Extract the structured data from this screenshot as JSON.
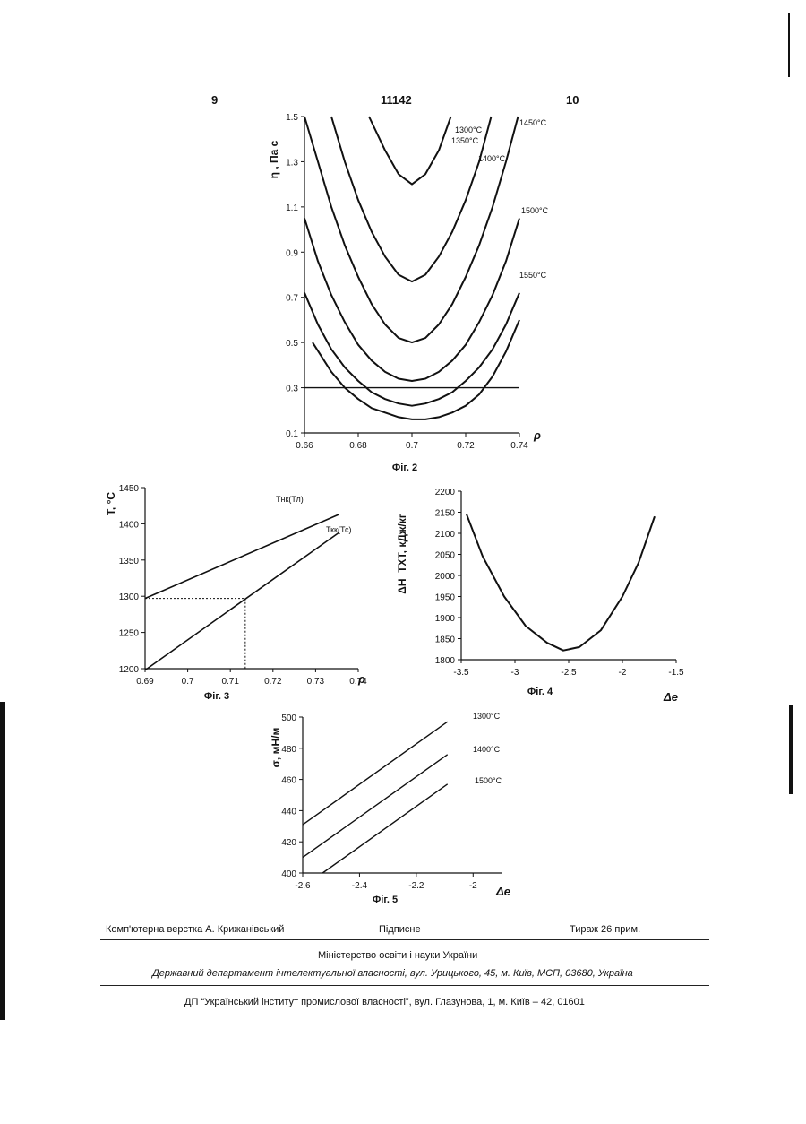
{
  "header": {
    "left_page": "9",
    "patent_number": "11142",
    "right_page": "10"
  },
  "figures": [
    {
      "caption": "Фіг. 2",
      "chart_data": {
        "type": "line",
        "ylabel": "η , Па с",
        "xlabel": "ρ",
        "xlim": [
          0.66,
          0.74
        ],
        "ylim": [
          0.1,
          1.5
        ],
        "x_ticks": [
          "0.66",
          "0.68",
          "0.7",
          "0.72",
          "0.74"
        ],
        "y_ticks": [
          "0.1",
          "0.3",
          "0.5",
          "0.7",
          "0.9",
          "1.1",
          "1.3",
          "1.5"
        ],
        "reference_line_y": 0.3,
        "series": [
          {
            "name": "1300°C",
            "x": [
              0.684,
              0.69,
              0.695,
              0.7,
              0.705,
              0.71,
              0.7145
            ],
            "y": [
              1.5,
              1.35,
              1.245,
              1.2,
              1.245,
              1.35,
              1.5
            ]
          },
          {
            "name": "1350°C",
            "x": [
              0.67,
              0.675,
              0.68,
              0.685,
              0.69,
              0.695,
              0.7,
              0.705,
              0.71,
              0.715,
              0.72,
              0.725,
              0.7295
            ],
            "y": [
              1.5,
              1.3,
              1.13,
              0.99,
              0.88,
              0.8,
              0.77,
              0.8,
              0.88,
              0.99,
              1.13,
              1.3,
              1.5
            ]
          },
          {
            "name": "1400°C",
            "x": [
              0.66,
              0.665,
              0.67,
              0.675,
              0.68,
              0.685,
              0.69,
              0.695,
              0.7,
              0.705,
              0.71,
              0.715,
              0.72,
              0.725,
              0.73,
              0.735,
              0.7395
            ],
            "y": [
              1.5,
              1.3,
              1.1,
              0.93,
              0.79,
              0.67,
              0.58,
              0.52,
              0.5,
              0.52,
              0.58,
              0.67,
              0.79,
              0.93,
              1.1,
              1.3,
              1.5
            ]
          },
          {
            "name": "1450°C",
            "x": [
              0.66,
              0.665,
              0.67,
              0.675,
              0.68,
              0.685,
              0.69,
              0.695,
              0.7,
              0.705,
              0.71,
              0.715,
              0.72,
              0.725,
              0.73,
              0.735,
              0.74
            ],
            "y": [
              1.05,
              0.86,
              0.71,
              0.59,
              0.49,
              0.42,
              0.37,
              0.34,
              0.33,
              0.34,
              0.37,
              0.42,
              0.49,
              0.59,
              0.71,
              0.86,
              1.05
            ]
          },
          {
            "name": "1500°C",
            "x": [
              0.66,
              0.665,
              0.67,
              0.675,
              0.68,
              0.685,
              0.69,
              0.695,
              0.7,
              0.705,
              0.71,
              0.715,
              0.72,
              0.725,
              0.73,
              0.735,
              0.74
            ],
            "y": [
              0.72,
              0.58,
              0.47,
              0.39,
              0.33,
              0.28,
              0.25,
              0.23,
              0.22,
              0.23,
              0.25,
              0.28,
              0.33,
              0.39,
              0.47,
              0.58,
              0.72
            ]
          },
          {
            "name": "1550°C",
            "x": [
              0.663,
              0.67,
              0.675,
              0.68,
              0.685,
              0.69,
              0.695,
              0.7,
              0.705,
              0.71,
              0.715,
              0.72,
              0.725,
              0.73,
              0.735,
              0.74
            ],
            "y": [
              0.5,
              0.37,
              0.3,
              0.25,
              0.21,
              0.19,
              0.17,
              0.16,
              0.16,
              0.17,
              0.19,
              0.22,
              0.27,
              0.35,
              0.46,
              0.6
            ]
          }
        ]
      }
    },
    {
      "caption": "Фіг. 3",
      "chart_data": {
        "type": "line",
        "ylabel": "T, °C",
        "xlabel": "ρ",
        "xlim": [
          0.69,
          0.74
        ],
        "ylim": [
          1200,
          1450
        ],
        "x_ticks": [
          "0.69",
          "0.7",
          "0.71",
          "0.72",
          "0.73",
          "0.74"
        ],
        "y_ticks": [
          "1200",
          "1250",
          "1300",
          "1350",
          "1400",
          "1450"
        ],
        "dashed_guide": {
          "x": 0.7135,
          "y": 1297
        },
        "series": [
          {
            "name": "Тнк(Тл)",
            "x": [
              0.69,
              0.7355
            ],
            "y": [
              1297,
              1413
            ]
          },
          {
            "name": "Ткк(Тс)",
            "x": [
              0.69,
              0.7355
            ],
            "y": [
              1198,
              1388
            ]
          }
        ]
      }
    },
    {
      "caption": "Фіг. 4",
      "chart_data": {
        "type": "line",
        "ylabel": "ΔH_ТХТ, кДж/кг",
        "xlabel": "Δe",
        "xlim": [
          -3.5,
          -1.5
        ],
        "ylim": [
          1800,
          2200
        ],
        "x_ticks": [
          "-3.5",
          "-3",
          "-2.5",
          "-2",
          "-1.5"
        ],
        "y_ticks": [
          "1800",
          "1850",
          "1900",
          "1950",
          "2000",
          "2050",
          "2100",
          "2150",
          "2200"
        ],
        "series": [
          {
            "name": "",
            "x": [
              -3.45,
              -3.3,
              -3.1,
              -2.9,
              -2.7,
              -2.55,
              -2.4,
              -2.2,
              -2.0,
              -1.85,
              -1.7
            ],
            "y": [
              2145,
              2045,
              1950,
              1880,
              1840,
              1822,
              1830,
              1870,
              1950,
              2030,
              2140
            ]
          }
        ]
      }
    },
    {
      "caption": "Фіг. 5",
      "chart_data": {
        "type": "line",
        "ylabel": "σ, мН/м",
        "xlabel": "Δe",
        "xlim": [
          -2.6,
          -1.9
        ],
        "ylim": [
          400,
          500
        ],
        "x_ticks": [
          "-2.6",
          "-2.4",
          "-2.2",
          "-2"
        ],
        "y_ticks": [
          "400",
          "420",
          "440",
          "460",
          "480",
          "500"
        ],
        "series": [
          {
            "name": "1300°C",
            "x": [
              -2.6,
              -2.09
            ],
            "y": [
              431,
              497
            ]
          },
          {
            "name": "1400°C",
            "x": [
              -2.6,
              -2.09
            ],
            "y": [
              410,
              476
            ]
          },
          {
            "name": "1500°C",
            "x": [
              -2.53,
              -2.09
            ],
            "y": [
              400,
              457
            ]
          }
        ]
      }
    }
  ],
  "footer": {
    "typesetting": "Комп'ютерна верстка А. Крижанівський",
    "signed": "Підписне",
    "circulation": "Тираж 26 прим.",
    "ministry": "Міністерство освіти і науки України",
    "department": "Державний департамент інтелектуальної власності, вул. Урицького, 45, м. Київ, МСП, 03680, Україна",
    "institute": "ДП “Український інститут промислової власності”, вул. Глазунова, 1, м. Київ – 42, 01601"
  }
}
